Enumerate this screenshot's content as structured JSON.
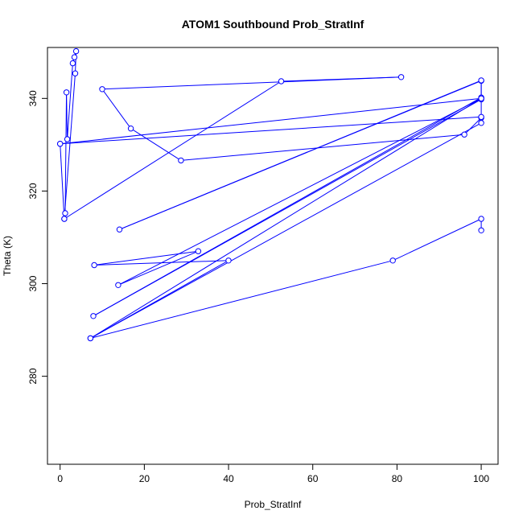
{
  "chart_data": {
    "type": "line",
    "title": "ATOM1 Southbound Prob_StratInf",
    "xlabel": "Prob_StratInf",
    "ylabel": "Theta (K)",
    "xlim": [
      -3,
      104
    ],
    "ylim": [
      261,
      351
    ],
    "xticks": [
      0,
      20,
      40,
      60,
      80,
      100
    ],
    "yticks": [
      280,
      300,
      320,
      340
    ],
    "grid": false,
    "legend": "none",
    "series_color": "#0000ff",
    "series": [
      {
        "points": [
          [
            0.0,
            330.2
          ],
          [
            1.0,
            314.0
          ],
          [
            1.2,
            315.2
          ],
          [
            1.5,
            341.3
          ],
          [
            1.7,
            331.2
          ],
          [
            3.0,
            347.6
          ],
          [
            3.4,
            348.9
          ],
          [
            3.8,
            350.2
          ],
          [
            3.6,
            345.4
          ],
          [
            1.0,
            314.0
          ],
          [
            52.5,
            343.7
          ],
          [
            81.0,
            344.6
          ],
          [
            10.0,
            342.0
          ],
          [
            16.8,
            333.5
          ],
          [
            28.7,
            326.6
          ],
          [
            96.0,
            332.2
          ],
          [
            100.0,
            335.8
          ],
          [
            100.0,
            334.7
          ],
          [
            7.2,
            288.2
          ],
          [
            40.0,
            305.0
          ],
          [
            8.1,
            304.0
          ],
          [
            32.8,
            307.0
          ],
          [
            13.8,
            299.7
          ],
          [
            100.0,
            340.0
          ],
          [
            100.0,
            343.8
          ],
          [
            14.1,
            311.7
          ],
          [
            100.0,
            343.9
          ],
          [
            100.0,
            339.8
          ],
          [
            7.9,
            293.0
          ],
          [
            100.0,
            340.2
          ],
          [
            100.0,
            336.0
          ],
          [
            0.0,
            330.2
          ],
          [
            100.0,
            340.0
          ],
          [
            7.2,
            288.2
          ],
          [
            79.0,
            305.0
          ],
          [
            100.0,
            314.0
          ],
          [
            100.0,
            311.5
          ]
        ]
      }
    ]
  }
}
